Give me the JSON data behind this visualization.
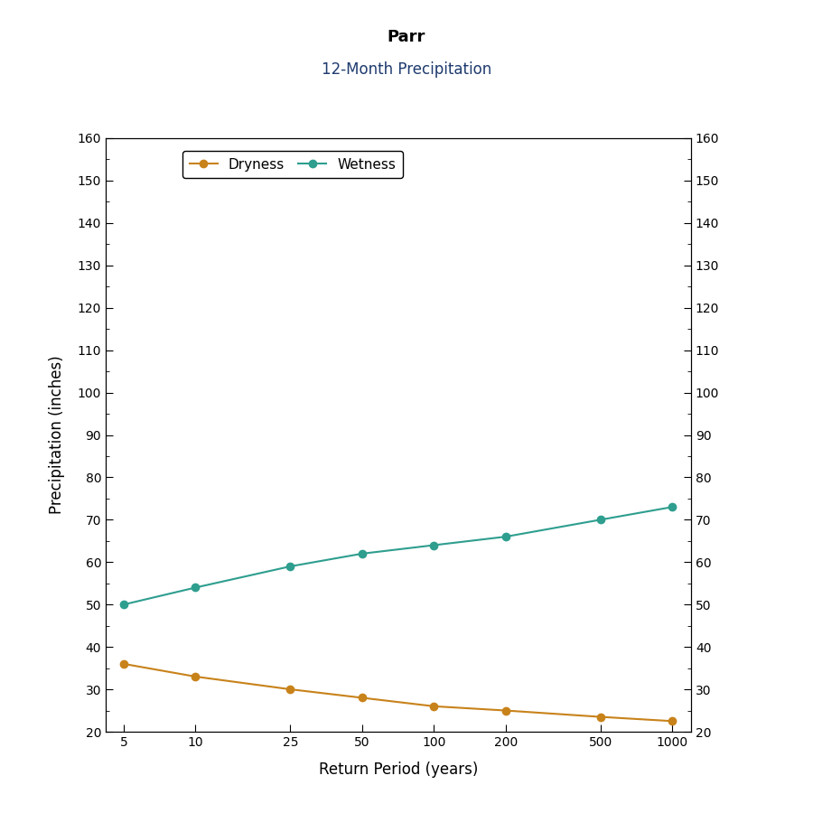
{
  "title": "Parr",
  "subtitle": "12-Month Precipitation",
  "xlabel": "Return Period (years)",
  "ylabel": "Precipitation (inches)",
  "x_values": [
    5,
    10,
    25,
    50,
    100,
    200,
    500,
    1000
  ],
  "dryness_values": [
    36,
    33,
    30,
    28,
    26,
    25,
    23.5,
    22.5
  ],
  "wetness_values": [
    50,
    54,
    59,
    62,
    64,
    66,
    70,
    73
  ],
  "dryness_color": "#C8821A",
  "wetness_color": "#2E9E8F",
  "ylim": [
    20,
    160
  ],
  "yticks": [
    20,
    30,
    40,
    50,
    60,
    70,
    80,
    90,
    100,
    110,
    120,
    130,
    140,
    150,
    160
  ],
  "background_color": "#FFFFFF",
  "plot_bg_color": "#FFFFFF",
  "title_fontsize": 13,
  "subtitle_fontsize": 12,
  "subtitle_color": "#1F3B6E",
  "axis_label_fontsize": 12,
  "tick_fontsize": 10,
  "legend_fontsize": 11,
  "line_width": 1.5,
  "marker_size": 6
}
